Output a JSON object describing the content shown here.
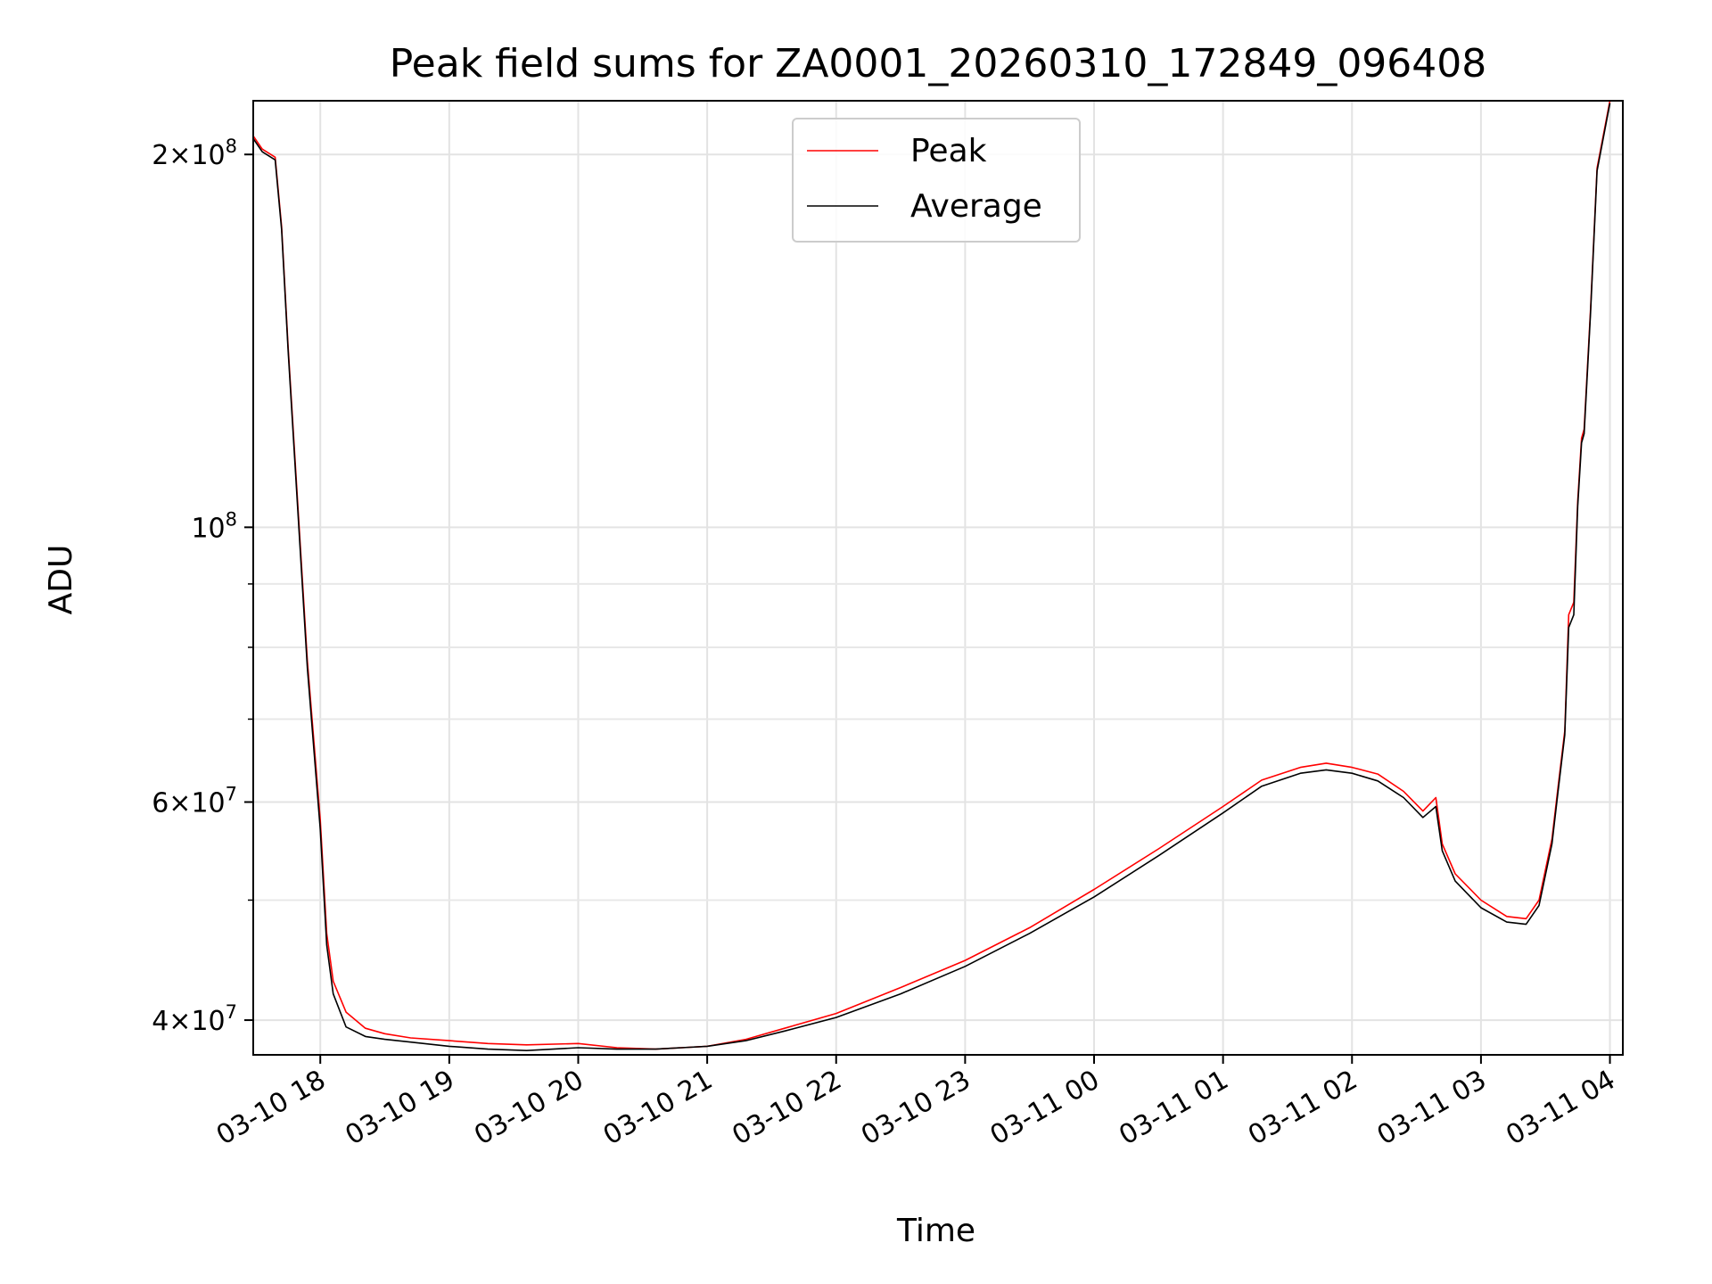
{
  "chart_data": {
    "type": "line",
    "title": "Peak field sums for ZA0001_20260310_172849_096408",
    "xlabel": "Time",
    "ylabel": "ADU",
    "yscale": "log",
    "grid": true,
    "legend_position": "top-center",
    "xlim_hours": [
      -0.52,
      10.1
    ],
    "ylim": [
      37500000,
      221000000
    ],
    "x_ticks": [
      {
        "hour": 0,
        "label": "03-10 18"
      },
      {
        "hour": 1,
        "label": "03-10 19"
      },
      {
        "hour": 2,
        "label": "03-10 20"
      },
      {
        "hour": 3,
        "label": "03-10 21"
      },
      {
        "hour": 4,
        "label": "03-10 22"
      },
      {
        "hour": 5,
        "label": "03-10 23"
      },
      {
        "hour": 6,
        "label": "03-11 00"
      },
      {
        "hour": 7,
        "label": "03-11 01"
      },
      {
        "hour": 8,
        "label": "03-11 02"
      },
      {
        "hour": 9,
        "label": "03-11 03"
      },
      {
        "hour": 10,
        "label": "03-11 04"
      }
    ],
    "y_major_ticks": [
      {
        "value": 40000000,
        "mantissa": "4",
        "exponent": "7"
      },
      {
        "value": 60000000,
        "mantissa": "6",
        "exponent": "7"
      },
      {
        "value": 100000000,
        "mantissa": "",
        "exponent": "8"
      },
      {
        "value": 200000000,
        "mantissa": "2",
        "exponent": "8"
      }
    ],
    "y_minor_ticks": [
      50000000,
      70000000,
      80000000,
      90000000
    ],
    "tick_prefix": "10",
    "series": [
      {
        "name": "Peak",
        "color": "#ff0000",
        "x": [
          -0.52,
          -0.45,
          -0.35,
          -0.3,
          -0.25,
          -0.1,
          0.0,
          0.05,
          0.1,
          0.2,
          0.35,
          0.5,
          0.7,
          1.0,
          1.3,
          1.6,
          2.0,
          2.3,
          2.6,
          3.0,
          3.3,
          3.6,
          4.0,
          4.5,
          5.0,
          5.5,
          6.0,
          6.5,
          7.0,
          7.3,
          7.6,
          7.8,
          8.0,
          8.2,
          8.4,
          8.55,
          8.65,
          8.7,
          8.8,
          9.0,
          9.2,
          9.35,
          9.45,
          9.55,
          9.6,
          9.65,
          9.68,
          9.72,
          9.75,
          9.78,
          9.8,
          9.85,
          9.9,
          10.0
        ],
        "y": [
          207000000,
          202000000,
          199000000,
          175000000,
          140000000,
          78000000,
          58000000,
          47000000,
          43000000,
          40600000,
          39400000,
          39000000,
          38700000,
          38500000,
          38300000,
          38200000,
          38300000,
          38000000,
          37900000,
          38100000,
          38600000,
          39400000,
          40500000,
          42500000,
          44700000,
          47500000,
          51000000,
          55000000,
          59500000,
          62500000,
          64000000,
          64500000,
          64000000,
          63200000,
          61200000,
          59000000,
          60500000,
          55500000,
          52500000,
          50000000,
          48500000,
          48300000,
          50000000,
          56000000,
          62000000,
          68500000,
          85000000,
          87000000,
          105000000,
          118000000,
          120000000,
          150000000,
          195000000,
          221000000
        ]
      },
      {
        "name": "Average",
        "color": "#000000",
        "x": [
          -0.52,
          -0.45,
          -0.35,
          -0.3,
          -0.25,
          -0.1,
          0.0,
          0.05,
          0.1,
          0.2,
          0.35,
          0.5,
          0.7,
          1.0,
          1.3,
          1.6,
          2.0,
          2.3,
          2.6,
          3.0,
          3.3,
          3.6,
          4.0,
          4.5,
          5.0,
          5.5,
          6.0,
          6.5,
          7.0,
          7.3,
          7.6,
          7.8,
          8.0,
          8.2,
          8.4,
          8.55,
          8.65,
          8.7,
          8.8,
          9.0,
          9.2,
          9.35,
          9.45,
          9.55,
          9.6,
          9.65,
          9.68,
          9.72,
          9.75,
          9.78,
          9.8,
          9.85,
          9.9,
          10.0
        ],
        "y": [
          206000000,
          201000000,
          198000000,
          174000000,
          139000000,
          77000000,
          57000000,
          46000000,
          42000000,
          39500000,
          38800000,
          38600000,
          38400000,
          38100000,
          37900000,
          37800000,
          38000000,
          37900000,
          37900000,
          38100000,
          38500000,
          39200000,
          40200000,
          42000000,
          44200000,
          47000000,
          50300000,
          54300000,
          58800000,
          61800000,
          63300000,
          63700000,
          63300000,
          62400000,
          60500000,
          58300000,
          59500000,
          54800000,
          51800000,
          49300000,
          48000000,
          47800000,
          49500000,
          55500000,
          61500000,
          68000000,
          83000000,
          85000000,
          104000000,
          117000000,
          119000000,
          149000000,
          194000000,
          220000000
        ]
      }
    ]
  }
}
